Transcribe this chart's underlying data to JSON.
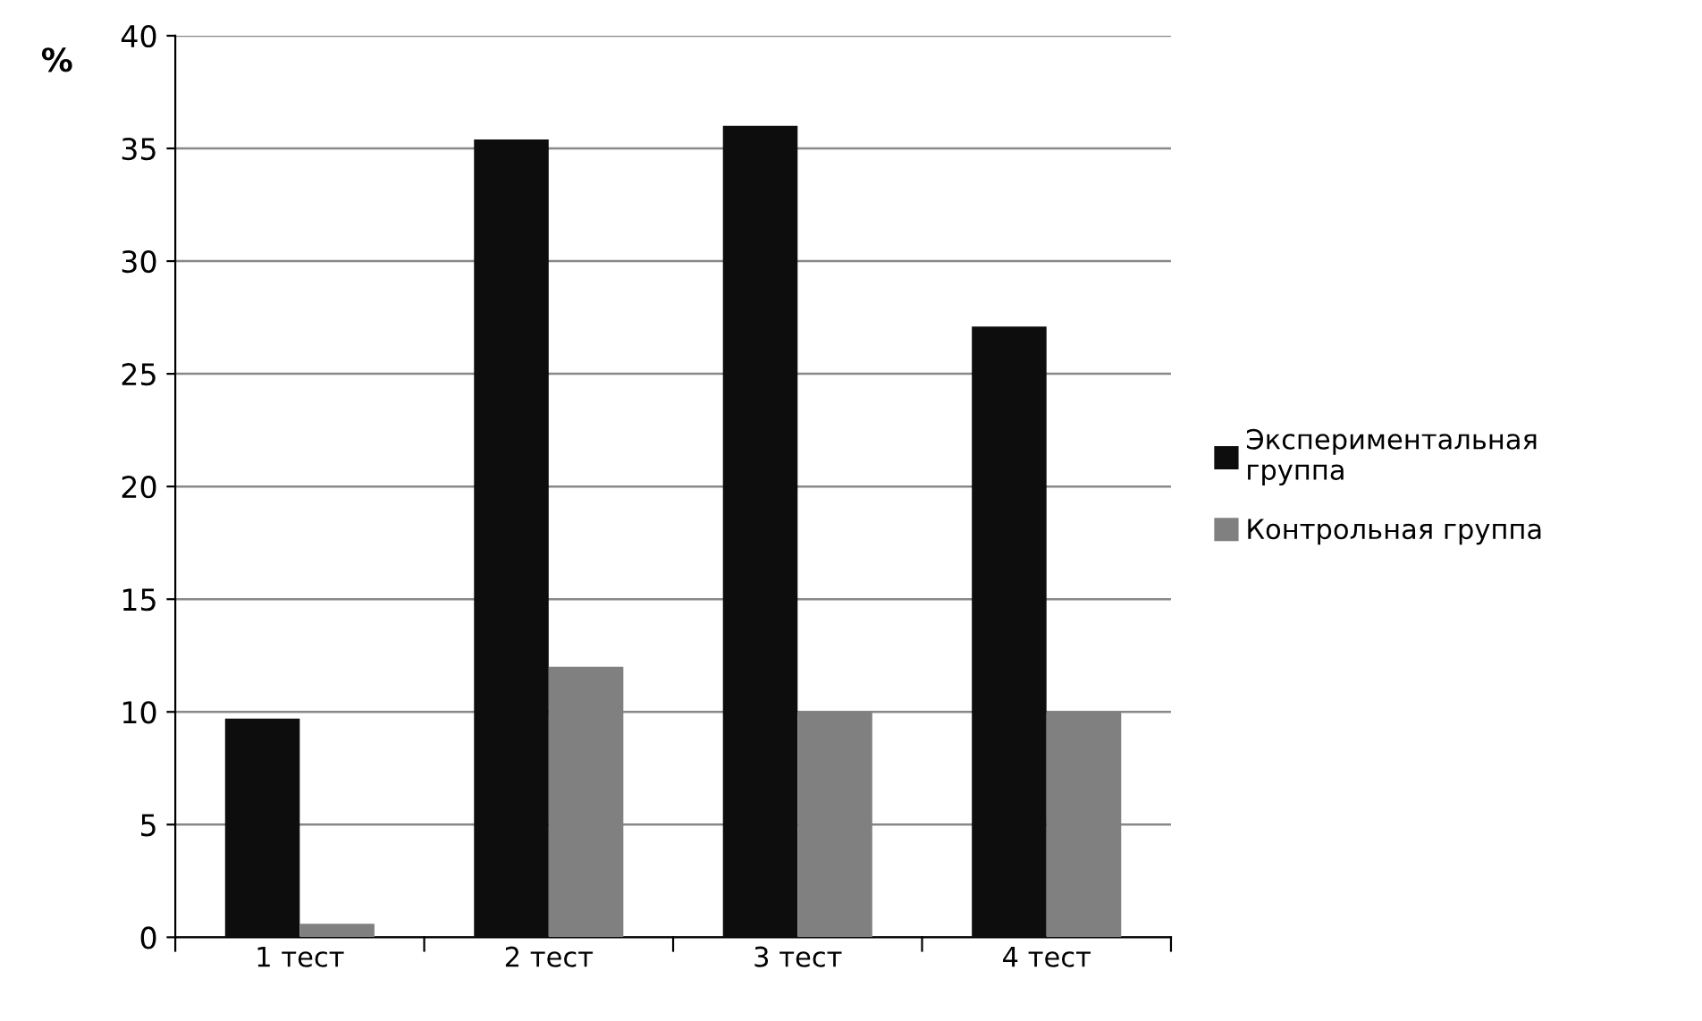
{
  "chart_data": {
    "type": "bar",
    "ylabel": "%",
    "categories": [
      "1 тест",
      "2 тест",
      "3 тест",
      "4 тест"
    ],
    "series": [
      {
        "name": "Экспериментальная группа",
        "color": "#0d0d0d",
        "values": [
          9.7,
          35.4,
          36,
          27.1
        ]
      },
      {
        "name": "Контрольная группа",
        "color": "#808080",
        "values": [
          0.6,
          12,
          10,
          10
        ]
      }
    ],
    "ylim": [
      0,
      40
    ],
    "yticks": [
      0,
      5,
      10,
      15,
      20,
      25,
      30,
      35,
      40
    ],
    "grid": "y",
    "legend": "right"
  }
}
